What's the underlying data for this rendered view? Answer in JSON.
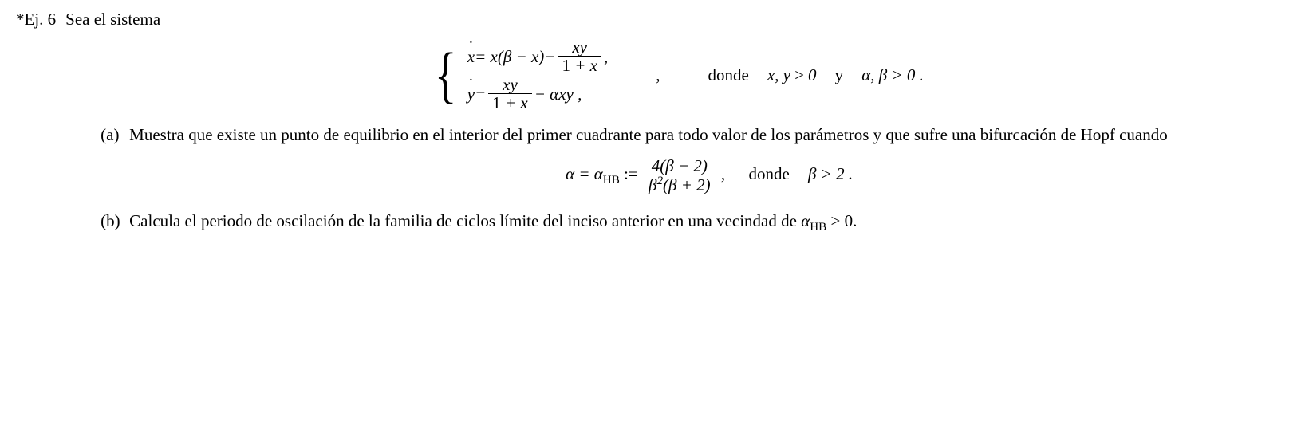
{
  "exercise": {
    "star": "*",
    "label": "Ej. 6",
    "intro": "Sea el sistema",
    "system": {
      "eq1_lhs_var": "x",
      "eq1_rhs_start": " = x",
      "eq1_rhs_paren": "(β − x)",
      "eq1_minus": " − ",
      "eq1_frac_num": "xy",
      "eq1_frac_den": "1 + x",
      "eq1_tail": " ,",
      "eq2_lhs_var": "y",
      "eq2_rhs_start": " = ",
      "eq2_frac_num": "xy",
      "eq2_frac_den": "1 + x",
      "eq2_mid": " − αxy ,"
    },
    "cond_sep": ",",
    "cond_donde": "donde",
    "cond_xy": "x, y ≥ 0",
    "cond_y": "y",
    "cond_ab": "α, β > 0 .",
    "part_a": {
      "label": "(a)",
      "text1": "Muestra que existe un punto de equilibrio en el interior del primer cuadrante para todo valor de los parámetros y que sufre una bifurcación de Hopf cuando",
      "eq_lhs": "α = α",
      "eq_sub": "HB",
      "eq_def": " := ",
      "eq_num": "4(β − 2)",
      "eq_den_b": "β",
      "eq_den_sup": "2",
      "eq_den_rest": "(β + 2)",
      "eq_comma": " ,",
      "eq_donde": "donde",
      "eq_cond": "β > 2 ."
    },
    "part_b": {
      "label": "(b)",
      "text_start": "Calcula el periodo de oscilación de la familia de ciclos límite del inciso anterior en una vecindad de ",
      "alpha_var": "α",
      "alpha_sub": "HB",
      "text_end": " > 0."
    }
  }
}
